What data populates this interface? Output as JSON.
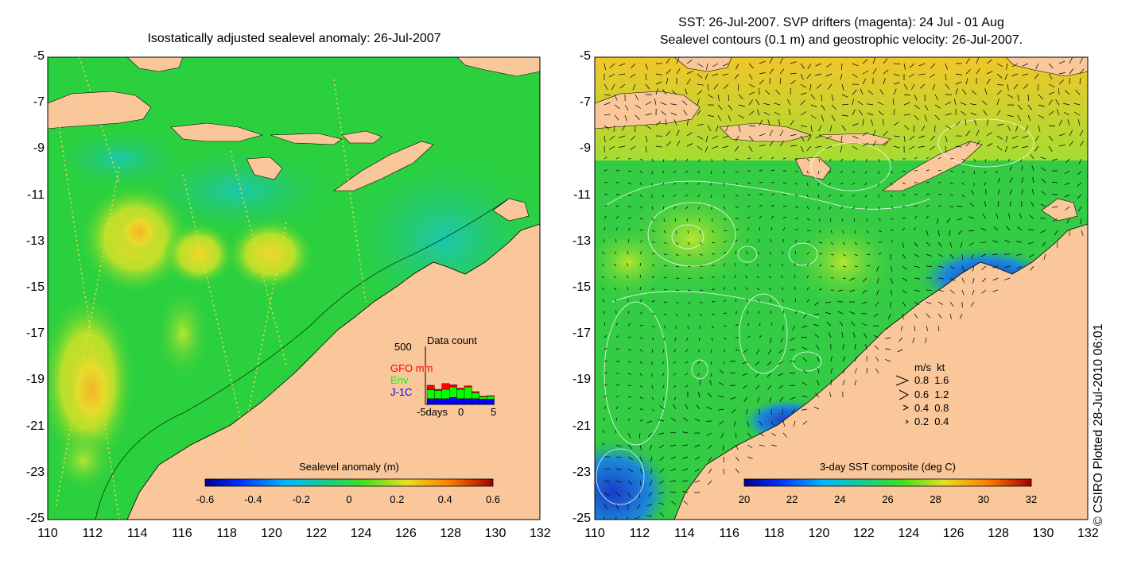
{
  "left_panel": {
    "title": "Isostatically adjusted sealevel anomaly: 26-Jul-2007",
    "colorbar_label": "Sealevel anomaly (m)",
    "colorbar_ticks": [
      "-0.6",
      "-0.4",
      "-0.2",
      "0",
      "0.2",
      "0.4",
      "0.6"
    ],
    "datacount": {
      "title": "Data count",
      "ymax_label": "500",
      "legend": [
        {
          "name": "GFO mm",
          "color": "#ff0000"
        },
        {
          "name": "Env",
          "color": "#00ff00"
        },
        {
          "name": "J-1C",
          "color": "#0000ff"
        }
      ],
      "x_labels": [
        "-5days",
        "0",
        "5"
      ],
      "bars": [
        {
          "j1c": 0.1,
          "env": 0.15,
          "gfo": 0.08
        },
        {
          "j1c": 0.1,
          "env": 0.14,
          "gfo": 0.02
        },
        {
          "j1c": 0.1,
          "env": 0.16,
          "gfo": 0.1
        },
        {
          "j1c": 0.12,
          "env": 0.18,
          "gfo": 0.04
        },
        {
          "j1c": 0.1,
          "env": 0.16,
          "gfo": 0.02
        },
        {
          "j1c": 0.1,
          "env": 0.2,
          "gfo": 0.02
        },
        {
          "j1c": 0.1,
          "env": 0.1,
          "gfo": 0.02
        },
        {
          "j1c": 0.09,
          "env": 0.04,
          "gfo": 0.01
        },
        {
          "j1c": 0.09,
          "env": 0.05,
          "gfo": 0.01
        }
      ]
    }
  },
  "right_panel": {
    "title_line1": "SST: 26-Jul-2007. SVP drifters (magenta): 24 Jul - 01 Aug",
    "title_line2": "Sealevel contours (0.1 m) and geostrophic velocity: 26-Jul-2007.",
    "colorbar_label": "3-day SST composite (deg C)",
    "colorbar_ticks": [
      "20",
      "22",
      "24",
      "26",
      "28",
      "30",
      "32"
    ],
    "velocity_legend": {
      "header": "m/s  kt",
      "rows": [
        "0.8  1.6",
        "0.6  1.2",
        "0.4  0.8",
        "0.2  0.4"
      ]
    }
  },
  "axes": {
    "y_ticks": [
      "-5",
      "-7",
      "-9",
      "-11",
      "-13",
      "-15",
      "-17",
      "-19",
      "-21",
      "-23",
      "-25"
    ],
    "x_ticks": [
      "110",
      "112",
      "114",
      "116",
      "118",
      "120",
      "122",
      "124",
      "126",
      "128",
      "130",
      "132"
    ]
  },
  "credit": "© CSIRO Plotted 28-Jul-2010 06:01",
  "colors": {
    "land": "#f9c79a",
    "sea_level_base": "#2bd03e",
    "sst_base": "#33cc44",
    "velocity_arrow": "#000000",
    "contour": "#ffffff"
  }
}
